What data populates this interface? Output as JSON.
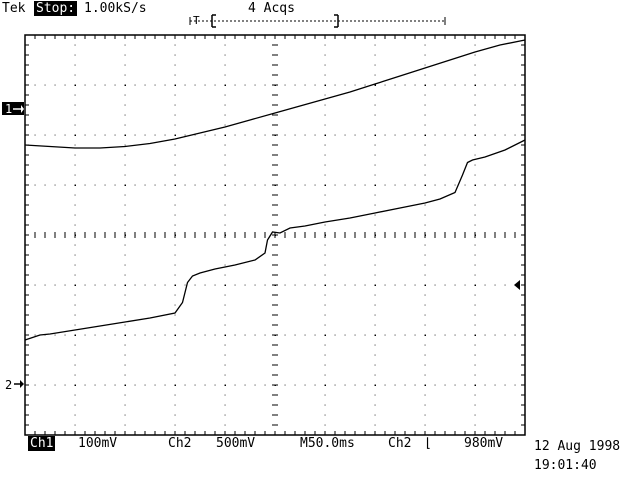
{
  "header": {
    "brand": "Tek",
    "mode": "Stop:",
    "sample_rate": "1.00kS/s",
    "acquisitions": "4 Acqs",
    "trigger_marker": "T"
  },
  "markers": {
    "ch1": "1",
    "ch2": "2"
  },
  "readout": {
    "ch1_label": "Ch1",
    "ch1_scale": "100mV",
    "ch2_label": "Ch2",
    "ch2_scale": "500mV",
    "timebase": "M50.0ms",
    "trigger_source": "Ch2",
    "trigger_slope_symbol": "⌊",
    "trigger_level": "980mV"
  },
  "datetime": {
    "date": "12 Aug 1998",
    "time": "19:01:40"
  },
  "colors": {
    "background": "#ffffff",
    "foreground": "#000000"
  },
  "chart_data": {
    "type": "line",
    "grid": true,
    "x_divisions": 10,
    "y_divisions": 8,
    "x_range_div": [
      0,
      10
    ],
    "y_range_div": [
      -4,
      4
    ],
    "series": [
      {
        "x": [
          0,
          0.5,
          1,
          1.5,
          2,
          2.5,
          3,
          3.5,
          4,
          4.5,
          5,
          5.5,
          6,
          6.5,
          7,
          7.5,
          8,
          8.5,
          9,
          9.5,
          10
        ],
        "y": [
          1.8,
          1.77,
          1.74,
          1.74,
          1.77,
          1.83,
          1.92,
          2.04,
          2.16,
          2.3,
          2.44,
          2.58,
          2.72,
          2.86,
          3.02,
          3.18,
          3.34,
          3.5,
          3.66,
          3.8,
          3.9
        ]
      },
      {
        "x": [
          0,
          0.3,
          0.5,
          1,
          1.5,
          2,
          2.5,
          3,
          3.15,
          3.25,
          3.35,
          3.5,
          3.8,
          4.2,
          4.6,
          4.8,
          4.85,
          4.95,
          5.1,
          5.3,
          5.6,
          6,
          6.5,
          7,
          7.5,
          8,
          8.3,
          8.6,
          8.75,
          8.85,
          8.95,
          9.2,
          9.6,
          10
        ],
        "y": [
          -2.1,
          -2.0,
          -1.98,
          -1.9,
          -1.82,
          -1.74,
          -1.66,
          -1.56,
          -1.35,
          -0.95,
          -0.82,
          -0.76,
          -0.68,
          -0.6,
          -0.5,
          -0.36,
          -0.1,
          0.06,
          0.04,
          0.14,
          0.18,
          0.26,
          0.34,
          0.44,
          0.54,
          0.64,
          0.72,
          0.85,
          1.2,
          1.45,
          1.5,
          1.56,
          1.7,
          1.9
        ]
      }
    ]
  }
}
